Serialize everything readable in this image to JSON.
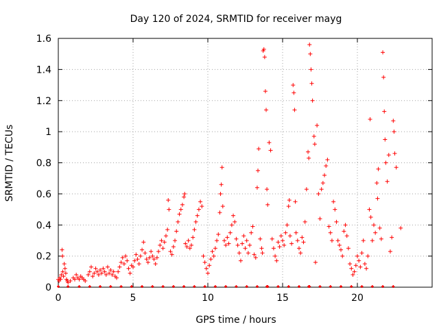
{
  "chart_data": {
    "type": "scatter",
    "title": "Day 120 of 2024, SRMTID for receiver mayg",
    "xlabel": "GPS time / hours",
    "ylabel": "SRMTID / TECUs",
    "xlim": [
      0,
      25
    ],
    "ylim": [
      0,
      1.6
    ],
    "x_ticks": [
      0,
      5,
      10,
      15,
      20
    ],
    "x_tick_labels": [
      "0",
      "5",
      "10",
      "15",
      "20"
    ],
    "y_ticks": [
      0,
      0.2,
      0.4,
      0.6,
      0.8,
      1,
      1.2,
      1.4,
      1.6
    ],
    "y_tick_labels": [
      "0",
      "0.2",
      "0.4",
      "0.6",
      "0.8",
      "1",
      "1.2",
      "1.4",
      "1.6"
    ],
    "grid": true,
    "marker": "+",
    "series": [
      {
        "name": "SRMTID",
        "color": "#ff0000",
        "points": [
          [
            0.0,
            0.05
          ],
          [
            0.05,
            0.04
          ],
          [
            0.1,
            0.06
          ],
          [
            0.15,
            0.05
          ],
          [
            0.2,
            0.08
          ],
          [
            0.25,
            0.24
          ],
          [
            0.28,
            0.2
          ],
          [
            0.3,
            0.1
          ],
          [
            0.35,
            0.07
          ],
          [
            0.4,
            0.15
          ],
          [
            0.45,
            0.12
          ],
          [
            0.5,
            0.09
          ],
          [
            0.55,
            0.05
          ],
          [
            0.6,
            0.04
          ],
          [
            0.65,
            0.03
          ],
          [
            0.8,
            0.04
          ],
          [
            1.0,
            0.06
          ],
          [
            1.1,
            0.05
          ],
          [
            1.2,
            0.08
          ],
          [
            1.3,
            0.06
          ],
          [
            1.4,
            0.05
          ],
          [
            1.5,
            0.07
          ],
          [
            1.6,
            0.06
          ],
          [
            1.7,
            0.05
          ],
          [
            1.8,
            0.04
          ],
          [
            2.0,
            0.08
          ],
          [
            2.1,
            0.1
          ],
          [
            2.2,
            0.13
          ],
          [
            2.3,
            0.07
          ],
          [
            2.4,
            0.09
          ],
          [
            2.5,
            0.12
          ],
          [
            2.6,
            0.1
          ],
          [
            2.7,
            0.08
          ],
          [
            2.8,
            0.11
          ],
          [
            2.9,
            0.09
          ],
          [
            3.0,
            0.12
          ],
          [
            3.1,
            0.1
          ],
          [
            3.2,
            0.08
          ],
          [
            3.3,
            0.13
          ],
          [
            3.4,
            0.09
          ],
          [
            3.5,
            0.11
          ],
          [
            3.6,
            0.08
          ],
          [
            3.7,
            0.1
          ],
          [
            3.8,
            0.07
          ],
          [
            3.9,
            0.06
          ],
          [
            4.0,
            0.1
          ],
          [
            4.1,
            0.13
          ],
          [
            4.2,
            0.16
          ],
          [
            4.3,
            0.19
          ],
          [
            4.4,
            0.15
          ],
          [
            4.5,
            0.2
          ],
          [
            4.6,
            0.17
          ],
          [
            4.7,
            0.12
          ],
          [
            4.8,
            0.09
          ],
          [
            4.9,
            0.14
          ],
          [
            5.0,
            0.13
          ],
          [
            5.1,
            0.17
          ],
          [
            5.2,
            0.21
          ],
          [
            5.3,
            0.18
          ],
          [
            5.4,
            0.15
          ],
          [
            5.5,
            0.2
          ],
          [
            5.6,
            0.24
          ],
          [
            5.7,
            0.29
          ],
          [
            5.8,
            0.22
          ],
          [
            5.9,
            0.18
          ],
          [
            6.0,
            0.16
          ],
          [
            6.1,
            0.19
          ],
          [
            6.2,
            0.23
          ],
          [
            6.3,
            0.2
          ],
          [
            6.4,
            0.18
          ],
          [
            6.5,
            0.15
          ],
          [
            6.6,
            0.19
          ],
          [
            6.7,
            0.23
          ],
          [
            6.8,
            0.27
          ],
          [
            6.9,
            0.3
          ],
          [
            7.0,
            0.25
          ],
          [
            7.1,
            0.29
          ],
          [
            7.2,
            0.33
          ],
          [
            7.3,
            0.37
          ],
          [
            7.35,
            0.56
          ],
          [
            7.4,
            0.5
          ],
          [
            7.5,
            0.23
          ],
          [
            7.6,
            0.21
          ],
          [
            7.7,
            0.26
          ],
          [
            7.8,
            0.3
          ],
          [
            7.9,
            0.36
          ],
          [
            8.0,
            0.42
          ],
          [
            8.1,
            0.47
          ],
          [
            8.2,
            0.5
          ],
          [
            8.3,
            0.53
          ],
          [
            8.4,
            0.58
          ],
          [
            8.45,
            0.6
          ],
          [
            8.5,
            0.28
          ],
          [
            8.6,
            0.26
          ],
          [
            8.7,
            0.3
          ],
          [
            8.8,
            0.25
          ],
          [
            8.9,
            0.27
          ],
          [
            9.0,
            0.32
          ],
          [
            9.1,
            0.37
          ],
          [
            9.2,
            0.42
          ],
          [
            9.3,
            0.46
          ],
          [
            9.4,
            0.5
          ],
          [
            9.5,
            0.55
          ],
          [
            9.6,
            0.52
          ],
          [
            9.7,
            0.2
          ],
          [
            9.8,
            0.16
          ],
          [
            9.9,
            0.12
          ],
          [
            10.0,
            0.09
          ],
          [
            10.1,
            0.14
          ],
          [
            10.2,
            0.18
          ],
          [
            10.3,
            0.23
          ],
          [
            10.4,
            0.2
          ],
          [
            10.5,
            0.25
          ],
          [
            10.6,
            0.3
          ],
          [
            10.7,
            0.34
          ],
          [
            10.8,
            0.48
          ],
          [
            10.85,
            0.6
          ],
          [
            10.9,
            0.66
          ],
          [
            10.95,
            0.77
          ],
          [
            11.0,
            0.52
          ],
          [
            11.1,
            0.3
          ],
          [
            11.2,
            0.27
          ],
          [
            11.3,
            0.32
          ],
          [
            11.4,
            0.28
          ],
          [
            11.5,
            0.35
          ],
          [
            11.6,
            0.4
          ],
          [
            11.7,
            0.46
          ],
          [
            11.8,
            0.42
          ],
          [
            11.9,
            0.31
          ],
          [
            12.0,
            0.27
          ],
          [
            12.1,
            0.22
          ],
          [
            12.2,
            0.17
          ],
          [
            12.3,
            0.28
          ],
          [
            12.4,
            0.33
          ],
          [
            12.5,
            0.25
          ],
          [
            12.6,
            0.3
          ],
          [
            12.7,
            0.22
          ],
          [
            12.8,
            0.27
          ],
          [
            12.9,
            0.35
          ],
          [
            13.0,
            0.39
          ],
          [
            13.1,
            0.21
          ],
          [
            13.2,
            0.19
          ],
          [
            13.3,
            0.64
          ],
          [
            13.35,
            0.75
          ],
          [
            13.4,
            0.89
          ],
          [
            13.5,
            0.31
          ],
          [
            13.6,
            0.25
          ],
          [
            13.65,
            0.22
          ],
          [
            13.7,
            1.52
          ],
          [
            13.75,
            1.53
          ],
          [
            13.8,
            1.48
          ],
          [
            13.85,
            1.26
          ],
          [
            13.9,
            1.14
          ],
          [
            13.95,
            0.63
          ],
          [
            14.0,
            0.53
          ],
          [
            14.1,
            0.93
          ],
          [
            14.2,
            0.88
          ],
          [
            14.3,
            0.31
          ],
          [
            14.4,
            0.25
          ],
          [
            14.5,
            0.2
          ],
          [
            14.6,
            0.17
          ],
          [
            14.7,
            0.29
          ],
          [
            14.8,
            0.26
          ],
          [
            14.9,
            0.33
          ],
          [
            15.0,
            0.3
          ],
          [
            15.1,
            0.27
          ],
          [
            15.2,
            0.35
          ],
          [
            15.3,
            0.4
          ],
          [
            15.4,
            0.52
          ],
          [
            15.45,
            0.56
          ],
          [
            15.5,
            0.33
          ],
          [
            15.6,
            0.28
          ],
          [
            15.7,
            1.3
          ],
          [
            15.75,
            1.25
          ],
          [
            15.8,
            1.14
          ],
          [
            15.85,
            0.55
          ],
          [
            15.9,
            0.35
          ],
          [
            16.0,
            0.3
          ],
          [
            16.1,
            0.25
          ],
          [
            16.2,
            0.22
          ],
          [
            16.3,
            0.32
          ],
          [
            16.4,
            0.29
          ],
          [
            16.5,
            0.42
          ],
          [
            16.6,
            0.63
          ],
          [
            16.7,
            0.87
          ],
          [
            16.75,
            0.83
          ],
          [
            16.8,
            1.56
          ],
          [
            16.85,
            1.5
          ],
          [
            16.9,
            1.4
          ],
          [
            16.95,
            1.31
          ],
          [
            17.0,
            1.2
          ],
          [
            17.1,
            0.97
          ],
          [
            17.15,
            0.92
          ],
          [
            17.2,
            0.16
          ],
          [
            17.3,
            1.04
          ],
          [
            17.4,
            0.6
          ],
          [
            17.5,
            0.44
          ],
          [
            17.6,
            0.63
          ],
          [
            17.7,
            0.67
          ],
          [
            17.8,
            0.72
          ],
          [
            17.9,
            0.78
          ],
          [
            18.0,
            0.82
          ],
          [
            18.1,
            0.39
          ],
          [
            18.2,
            0.35
          ],
          [
            18.3,
            0.3
          ],
          [
            18.4,
            0.55
          ],
          [
            18.5,
            0.5
          ],
          [
            18.6,
            0.42
          ],
          [
            18.7,
            0.3
          ],
          [
            18.8,
            0.27
          ],
          [
            18.9,
            0.24
          ],
          [
            19.0,
            0.2
          ],
          [
            19.1,
            0.36
          ],
          [
            19.2,
            0.4
          ],
          [
            19.3,
            0.33
          ],
          [
            19.4,
            0.25
          ],
          [
            19.5,
            0.15
          ],
          [
            19.6,
            0.12
          ],
          [
            19.7,
            0.08
          ],
          [
            19.8,
            0.1
          ],
          [
            19.9,
            0.14
          ],
          [
            20.0,
            0.2
          ],
          [
            20.1,
            0.17
          ],
          [
            20.2,
            0.13
          ],
          [
            20.3,
            0.22
          ],
          [
            20.4,
            0.3
          ],
          [
            20.5,
            0.15
          ],
          [
            20.6,
            0.12
          ],
          [
            20.7,
            0.2
          ],
          [
            20.8,
            0.5
          ],
          [
            20.85,
            1.08
          ],
          [
            20.9,
            0.45
          ],
          [
            21.0,
            0.3
          ],
          [
            21.1,
            0.4
          ],
          [
            21.2,
            0.35
          ],
          [
            21.3,
            0.67
          ],
          [
            21.35,
            0.57
          ],
          [
            21.4,
            0.76
          ],
          [
            21.5,
            0.38
          ],
          [
            21.6,
            0.31
          ],
          [
            21.7,
            1.51
          ],
          [
            21.75,
            1.35
          ],
          [
            21.8,
            1.13
          ],
          [
            21.85,
            0.95
          ],
          [
            21.9,
            0.8
          ],
          [
            22.0,
            0.68
          ],
          [
            22.1,
            0.85
          ],
          [
            22.2,
            0.23
          ],
          [
            22.3,
            0.32
          ],
          [
            22.4,
            1.07
          ],
          [
            22.45,
            1.0
          ],
          [
            22.5,
            0.86
          ],
          [
            22.6,
            0.77
          ],
          [
            22.9,
            0.38
          ]
        ]
      }
    ]
  }
}
